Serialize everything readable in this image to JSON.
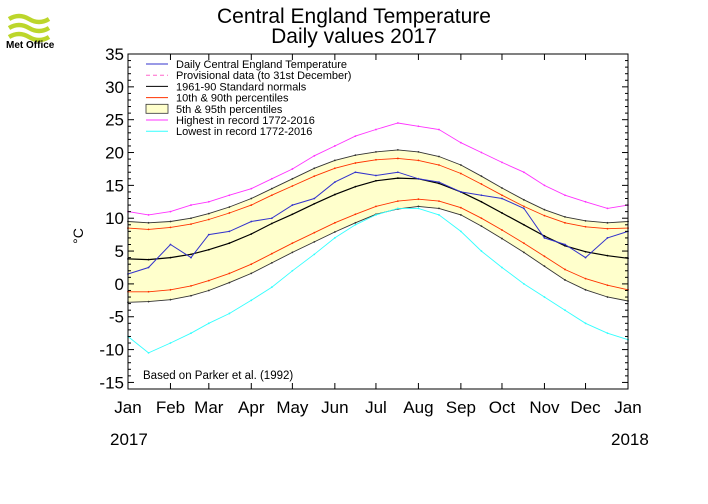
{
  "header": {
    "logo_text": "Met Office",
    "title": "Central England Temperature",
    "subtitle": "Daily values 2017"
  },
  "colors": {
    "daily": "#3333cc",
    "provisional": "#ff66cc",
    "normal": "#000000",
    "p10_90": "#ff3300",
    "band5_95_fill": "#ffffcc",
    "band5_95_line": "#333333",
    "highest": "#ff33ff",
    "lowest": "#33ffff",
    "logo": "#bcd62b"
  },
  "chart_data": {
    "type": "line",
    "title": "Central England Temperature",
    "subtitle": "Daily values 2017",
    "ylabel": "°C",
    "xlabel": "",
    "ylim": [
      -16,
      35
    ],
    "yticks": [
      35,
      30,
      25,
      20,
      15,
      10,
      5,
      0,
      -5,
      -10,
      -15
    ],
    "xlim_days": [
      0,
      365
    ],
    "month_ticks": [
      {
        "label": "Jan",
        "day": 0
      },
      {
        "label": "Feb",
        "day": 31
      },
      {
        "label": "Mar",
        "day": 59
      },
      {
        "label": "Apr",
        "day": 90
      },
      {
        "label": "May",
        "day": 120
      },
      {
        "label": "Jun",
        "day": 151
      },
      {
        "label": "Jul",
        "day": 181
      },
      {
        "label": "Aug",
        "day": 212
      },
      {
        "label": "Sep",
        "day": 243
      },
      {
        "label": "Oct",
        "day": 273
      },
      {
        "label": "Nov",
        "day": 304
      },
      {
        "label": "Dec",
        "day": 334
      },
      {
        "label": "Jan",
        "day": 365
      }
    ],
    "year_labels": [
      "2017",
      "2018"
    ],
    "legend_position": "top-left",
    "legend": [
      {
        "key": "daily",
        "label": "Daily Central England Temperature"
      },
      {
        "key": "provisional",
        "label": "Provisional data (to 31st December)"
      },
      {
        "key": "normal",
        "label": "1961-90 Standard normals"
      },
      {
        "key": "p10_90",
        "label": "10th & 90th percentiles"
      },
      {
        "key": "band5_95",
        "label": "5th & 95th percentiles"
      },
      {
        "key": "highest",
        "label": "Highest in record 1772-2016"
      },
      {
        "key": "lowest",
        "label": "Lowest in record 1772-2016"
      }
    ],
    "annotation": "Based on Parker et al. (1992)",
    "series_days": [
      0,
      15,
      31,
      46,
      59,
      74,
      90,
      105,
      120,
      136,
      151,
      166,
      181,
      197,
      212,
      227,
      243,
      258,
      273,
      289,
      304,
      319,
      334,
      350,
      365
    ],
    "series": [
      {
        "name": "Highest in record 1772-2016",
        "key": "highest",
        "values": [
          11,
          10.5,
          11,
          12,
          12.5,
          13.5,
          14.5,
          16,
          17.5,
          19.5,
          21,
          22.5,
          23.5,
          24.5,
          24,
          23.5,
          21.5,
          20,
          18.5,
          17,
          15,
          13.5,
          12.5,
          11.5,
          12
        ]
      },
      {
        "name": "5th percentile upper",
        "key": "p95",
        "values": [
          9.5,
          9.3,
          9.5,
          10,
          10.7,
          11.7,
          13,
          14.5,
          16,
          17.6,
          18.8,
          19.6,
          20.1,
          20.4,
          20.1,
          19.4,
          18.1,
          16.4,
          14.6,
          12.8,
          11.3,
          10.2,
          9.6,
          9.3,
          9.5
        ]
      },
      {
        "name": "10th percentile upper",
        "key": "p90",
        "values": [
          8.5,
          8.3,
          8.6,
          9.1,
          9.8,
          10.8,
          12,
          13.5,
          14.9,
          16.4,
          17.6,
          18.4,
          18.9,
          19.1,
          18.8,
          18.1,
          16.8,
          15.2,
          13.5,
          11.8,
          10.4,
          9.3,
          8.7,
          8.4,
          8.5
        ]
      },
      {
        "name": "1961-90 Standard normals",
        "key": "normal",
        "values": [
          3.8,
          3.7,
          4,
          4.5,
          5.2,
          6.2,
          7.6,
          9.2,
          10.6,
          12.2,
          13.6,
          14.8,
          15.7,
          16.1,
          16,
          15.3,
          14,
          12.5,
          10.8,
          9,
          7.3,
          5.8,
          4.9,
          4.3,
          3.9
        ]
      },
      {
        "name": "10th percentile lower",
        "key": "p10",
        "values": [
          -1.2,
          -1.2,
          -0.9,
          -0.3,
          0.5,
          1.6,
          3,
          4.6,
          6.2,
          7.8,
          9.3,
          10.6,
          11.8,
          12.6,
          12.9,
          12.6,
          11.6,
          10,
          8.2,
          6.2,
          4.2,
          2.2,
          0.8,
          -0.2,
          -0.9
        ]
      },
      {
        "name": "5th percentile lower",
        "key": "p05",
        "values": [
          -2.8,
          -2.7,
          -2.4,
          -1.8,
          -1,
          0.2,
          1.6,
          3.2,
          4.8,
          6.4,
          7.9,
          9.3,
          10.6,
          11.4,
          11.8,
          11.5,
          10.5,
          8.8,
          6.9,
          4.8,
          2.7,
          0.6,
          -0.9,
          -2,
          -2.6
        ]
      },
      {
        "name": "Lowest in record 1772-2016",
        "key": "lowest",
        "values": [
          -8,
          -10.5,
          -9,
          -7.5,
          -6,
          -4.5,
          -2.5,
          -0.5,
          2,
          4.5,
          7,
          9,
          10.5,
          11.5,
          11.5,
          10.5,
          8,
          5,
          2.5,
          0,
          -2,
          -4,
          -6,
          -7.5,
          -8.5
        ]
      },
      {
        "name": "Daily Central England Temperature",
        "key": "daily",
        "values": [
          1.5,
          2.5,
          6,
          4,
          7.5,
          8,
          9.5,
          10,
          12,
          13,
          15.5,
          17,
          16.5,
          17,
          16,
          15.5,
          14,
          13.5,
          13,
          11.5,
          7,
          6,
          4,
          7,
          8
        ]
      }
    ]
  }
}
